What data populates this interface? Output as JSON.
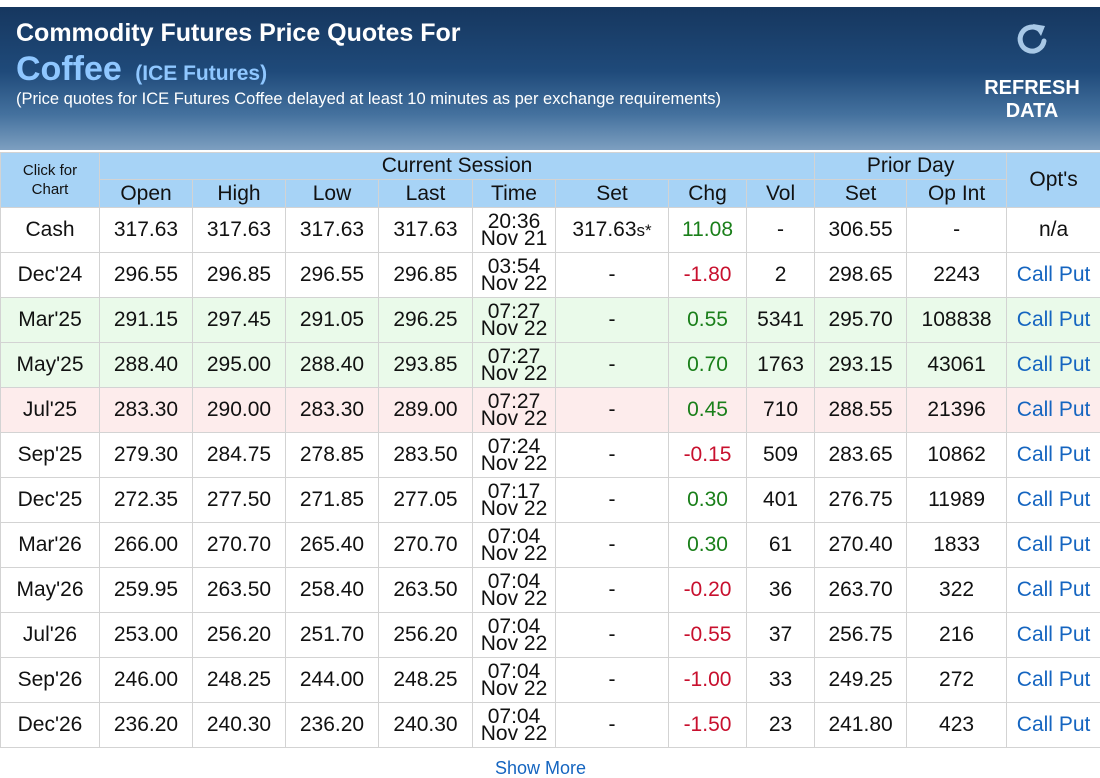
{
  "header": {
    "title": "Commodity Futures Price Quotes For",
    "commodity": "Coffee",
    "exchange": "(ICE Futures)",
    "note": "(Price quotes for ICE Futures Coffee delayed at least 10 minutes as per exchange requirements)",
    "refresh_line1": "REFRESH",
    "refresh_line2": "DATA"
  },
  "columns": {
    "click_line1": "Click for",
    "click_line2": "Chart",
    "current_session": "Current Session",
    "prior_day": "Prior Day",
    "opts": "Opt's",
    "open": "Open",
    "high": "High",
    "low": "Low",
    "last": "Last",
    "time": "Time",
    "set": "Set",
    "chg": "Chg",
    "vol": "Vol",
    "prior_set": "Set",
    "op_int": "Op Int"
  },
  "rows": [
    {
      "symbol": "Cash",
      "open": "317.63",
      "high": "317.63",
      "low": "317.63",
      "last": "317.63",
      "time": "20:36",
      "date": "Nov 21",
      "set": "317.63",
      "set_suffix": "s*",
      "chg": "11.08",
      "dir": "pos",
      "vol": "-",
      "prior_set": "306.55",
      "op_int": "-",
      "opts": "n/a",
      "highlight": ""
    },
    {
      "symbol": "Dec'24",
      "open": "296.55",
      "high": "296.85",
      "low": "296.55",
      "last": "296.85",
      "time": "03:54",
      "date": "Nov 22",
      "set": "-",
      "chg": "-1.80",
      "dir": "neg",
      "vol": "2",
      "prior_set": "298.65",
      "op_int": "2243",
      "call": "Call",
      "put": "Put",
      "highlight": ""
    },
    {
      "symbol": "Mar'25",
      "open": "291.15",
      "high": "297.45",
      "low": "291.05",
      "last": "296.25",
      "time": "07:27",
      "date": "Nov 22",
      "set": "-",
      "chg": "0.55",
      "dir": "pos",
      "vol": "5341",
      "prior_set": "295.70",
      "op_int": "108838",
      "call": "Call",
      "put": "Put",
      "highlight": "green"
    },
    {
      "symbol": "May'25",
      "open": "288.40",
      "high": "295.00",
      "low": "288.40",
      "last": "293.85",
      "time": "07:27",
      "date": "Nov 22",
      "set": "-",
      "chg": "0.70",
      "dir": "pos",
      "vol": "1763",
      "prior_set": "293.15",
      "op_int": "43061",
      "call": "Call",
      "put": "Put",
      "highlight": "green"
    },
    {
      "symbol": "Jul'25",
      "open": "283.30",
      "high": "290.00",
      "low": "283.30",
      "last": "289.00",
      "time": "07:27",
      "date": "Nov 22",
      "set": "-",
      "chg": "0.45",
      "dir": "pos",
      "vol": "710",
      "prior_set": "288.55",
      "op_int": "21396",
      "call": "Call",
      "put": "Put",
      "highlight": "red"
    },
    {
      "symbol": "Sep'25",
      "open": "279.30",
      "high": "284.75",
      "low": "278.85",
      "last": "283.50",
      "time": "07:24",
      "date": "Nov 22",
      "set": "-",
      "chg": "-0.15",
      "dir": "neg",
      "vol": "509",
      "prior_set": "283.65",
      "op_int": "10862",
      "call": "Call",
      "put": "Put",
      "highlight": ""
    },
    {
      "symbol": "Dec'25",
      "open": "272.35",
      "high": "277.50",
      "low": "271.85",
      "last": "277.05",
      "time": "07:17",
      "date": "Nov 22",
      "set": "-",
      "chg": "0.30",
      "dir": "pos",
      "vol": "401",
      "prior_set": "276.75",
      "op_int": "11989",
      "call": "Call",
      "put": "Put",
      "highlight": ""
    },
    {
      "symbol": "Mar'26",
      "open": "266.00",
      "high": "270.70",
      "low": "265.40",
      "last": "270.70",
      "time": "07:04",
      "date": "Nov 22",
      "set": "-",
      "chg": "0.30",
      "dir": "pos",
      "vol": "61",
      "prior_set": "270.40",
      "op_int": "1833",
      "call": "Call",
      "put": "Put",
      "highlight": ""
    },
    {
      "symbol": "May'26",
      "open": "259.95",
      "high": "263.50",
      "low": "258.40",
      "last": "263.50",
      "time": "07:04",
      "date": "Nov 22",
      "set": "-",
      "chg": "-0.20",
      "dir": "neg",
      "vol": "36",
      "prior_set": "263.70",
      "op_int": "322",
      "call": "Call",
      "put": "Put",
      "highlight": ""
    },
    {
      "symbol": "Jul'26",
      "open": "253.00",
      "high": "256.20",
      "low": "251.70",
      "last": "256.20",
      "time": "07:04",
      "date": "Nov 22",
      "set": "-",
      "chg": "-0.55",
      "dir": "neg",
      "vol": "37",
      "prior_set": "256.75",
      "op_int": "216",
      "call": "Call",
      "put": "Put",
      "highlight": ""
    },
    {
      "symbol": "Sep'26",
      "open": "246.00",
      "high": "248.25",
      "low": "244.00",
      "last": "248.25",
      "time": "07:04",
      "date": "Nov 22",
      "set": "-",
      "chg": "-1.00",
      "dir": "neg",
      "vol": "33",
      "prior_set": "249.25",
      "op_int": "272",
      "call": "Call",
      "put": "Put",
      "highlight": ""
    },
    {
      "symbol": "Dec'26",
      "open": "236.20",
      "high": "240.30",
      "low": "236.20",
      "last": "240.30",
      "time": "07:04",
      "date": "Nov 22",
      "set": "-",
      "chg": "-1.50",
      "dir": "neg",
      "vol": "23",
      "prior_set": "241.80",
      "op_int": "423",
      "call": "Call",
      "put": "Put",
      "highlight": ""
    }
  ],
  "footer": {
    "show_more": "Show More"
  },
  "colors": {
    "positive": "#1a7f1a",
    "negative": "#c8102e",
    "link": "#1565c0",
    "header_bg": "#a7d3f6"
  }
}
